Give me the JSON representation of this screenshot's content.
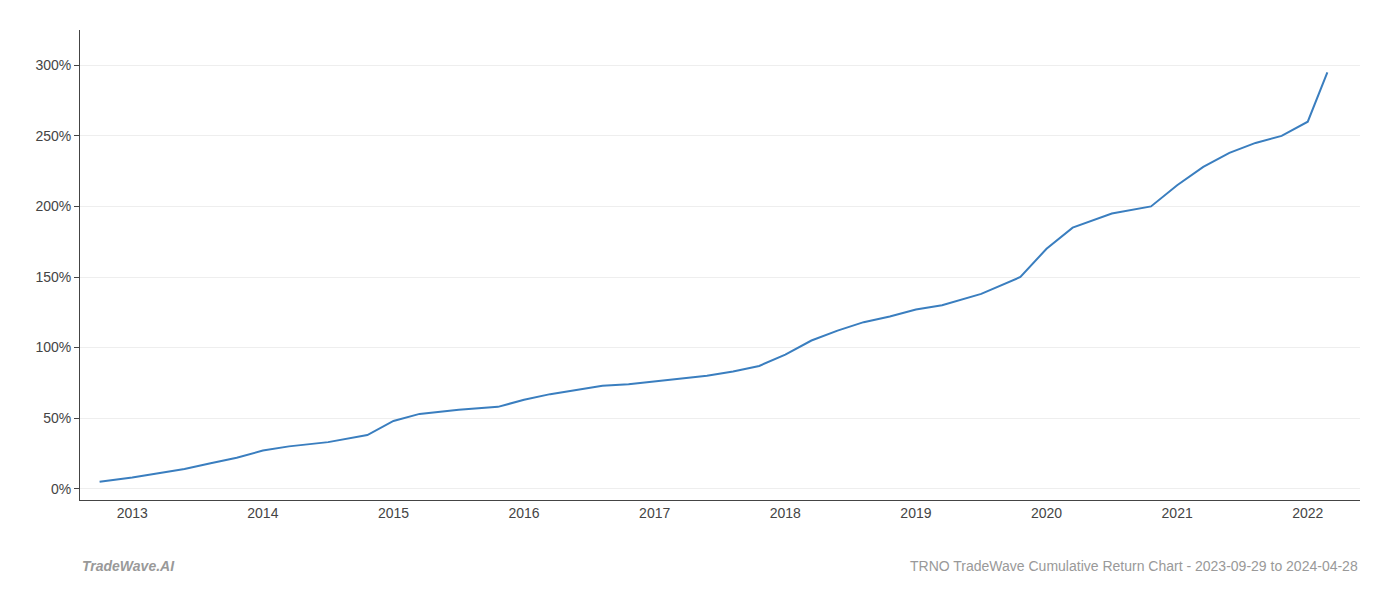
{
  "chart_data": {
    "type": "line",
    "color": "#3a7ebf",
    "x": [
      2012.75,
      2013.0,
      2013.2,
      2013.4,
      2013.6,
      2013.8,
      2014.0,
      2014.2,
      2014.5,
      2014.8,
      2015.0,
      2015.2,
      2015.5,
      2015.8,
      2016.0,
      2016.2,
      2016.4,
      2016.6,
      2016.8,
      2017.0,
      2017.2,
      2017.4,
      2017.6,
      2017.8,
      2018.0,
      2018.2,
      2018.4,
      2018.6,
      2018.8,
      2019.0,
      2019.2,
      2019.5,
      2019.8,
      2020.0,
      2020.2,
      2020.5,
      2020.8,
      2021.0,
      2021.2,
      2021.4,
      2021.6,
      2021.8,
      2022.0,
      2022.15
    ],
    "values": [
      5,
      8,
      11,
      14,
      18,
      22,
      27,
      30,
      33,
      38,
      48,
      53,
      56,
      58,
      63,
      67,
      70,
      73,
      74,
      76,
      78,
      80,
      83,
      87,
      95,
      105,
      112,
      118,
      122,
      127,
      130,
      138,
      150,
      170,
      185,
      195,
      200,
      215,
      228,
      238,
      245,
      250,
      260,
      295
    ],
    "xlim": [
      2012.6,
      2022.4
    ],
    "xticks": [
      2013,
      2014,
      2015,
      2016,
      2017,
      2018,
      2019,
      2020,
      2021,
      2022
    ],
    "ylim": [
      -8,
      325
    ],
    "yticks": [
      {
        "value": 0,
        "label": "0%"
      },
      {
        "value": 50,
        "label": "50%"
      },
      {
        "value": 100,
        "label": "100%"
      },
      {
        "value": 150,
        "label": "150%"
      },
      {
        "value": 200,
        "label": "200%"
      },
      {
        "value": 250,
        "label": "250%"
      },
      {
        "value": 300,
        "label": "300%"
      }
    ],
    "grid": "y",
    "annotations": [
      "TradeWave.AI",
      "TRNO TradeWave Cumulative Return Chart - 2023-09-29 to 2024-04-28"
    ]
  }
}
